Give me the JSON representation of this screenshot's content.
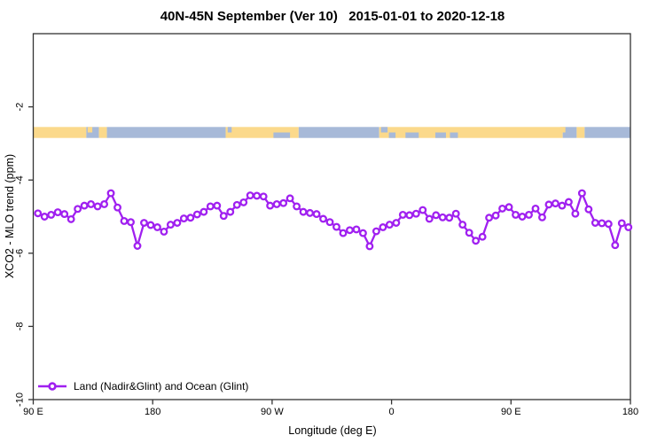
{
  "title": "40N-45N September (Ver 10)   2015-01-01 to 2020-12-18",
  "chart_data": {
    "type": "line",
    "title": "40N-45N September (Ver 10)   2015-01-01 to 2020-12-18",
    "xlabel": "Longitude (deg E)",
    "ylabel": "XCO2 - MLO trend (ppm)",
    "xlim": [
      90,
      540
    ],
    "ylim": [
      0,
      -10
    ],
    "x_tick_positions": [
      90,
      180,
      270,
      360,
      450,
      540
    ],
    "x_tick_labels": [
      "90 E",
      "180",
      "90 W",
      "0",
      "90 E",
      "180"
    ],
    "y_ticks": [
      -2,
      -4,
      -6,
      -8,
      -10
    ],
    "grid": "off",
    "legend_position": "bottom-left",
    "series": [
      {
        "name": "Land (Nadir&Glint) and Ocean (Glint)",
        "color": "#A020F0",
        "marker": "open-circle",
        "x_start": 93.5,
        "x_step": 5,
        "values": [
          -4.91,
          -5.0,
          -4.95,
          -4.88,
          -4.93,
          -5.07,
          -4.79,
          -4.7,
          -4.66,
          -4.72,
          -4.66,
          -4.36,
          -4.75,
          -5.12,
          -5.15,
          -5.8,
          -5.17,
          -5.23,
          -5.29,
          -5.41,
          -5.22,
          -5.17,
          -5.05,
          -5.03,
          -4.94,
          -4.87,
          -4.72,
          -4.7,
          -4.98,
          -4.87,
          -4.68,
          -4.61,
          -4.42,
          -4.43,
          -4.45,
          -4.7,
          -4.66,
          -4.63,
          -4.5,
          -4.72,
          -4.87,
          -4.9,
          -4.93,
          -5.06,
          -5.15,
          -5.28,
          -5.45,
          -5.37,
          -5.35,
          -5.45,
          -5.81,
          -5.4,
          -5.29,
          -5.22,
          -5.17,
          -4.95,
          -4.96,
          -4.92,
          -4.82,
          -5.06,
          -4.96,
          -5.02,
          -5.03,
          -4.92,
          -5.22,
          -5.44,
          -5.66,
          -5.55,
          -5.03,
          -4.97,
          -4.78,
          -4.74,
          -4.95,
          -5.0,
          -4.95,
          -4.78,
          -5.02,
          -4.67,
          -4.64,
          -4.7,
          -4.6,
          -4.92,
          -4.36,
          -4.8,
          -5.17,
          -5.18,
          -5.2,
          -5.78,
          -5.18,
          -5.29
        ]
      }
    ],
    "map_band": {
      "description": "land/ocean strip along 40N-45N",
      "y_top": -2.55,
      "y_bottom": -2.85,
      "land_color": "#FBD98B",
      "ocean_color": "#A7B9D8",
      "segments": [
        [
          90,
          130,
          "land"
        ],
        [
          130,
          139.5,
          "ocean"
        ],
        [
          139.5,
          145.5,
          "land"
        ],
        [
          145.5,
          235,
          "ocean"
        ],
        [
          235,
          290,
          "land"
        ],
        [
          290,
          350.7,
          "ocean"
        ],
        [
          350.7,
          489,
          "land"
        ],
        [
          489,
          499.5,
          "ocean"
        ],
        [
          499.5,
          505.5,
          "land"
        ],
        [
          505.5,
          540,
          "ocean"
        ]
      ],
      "specks": [
        [
          271,
          283.5,
          "bottom",
          "ocean"
        ],
        [
          352,
          357,
          "top",
          "ocean"
        ],
        [
          370.5,
          380.5,
          "bottom",
          "ocean"
        ],
        [
          393,
          401,
          "bottom",
          "ocean"
        ],
        [
          404,
          410,
          "bottom",
          "ocean"
        ],
        [
          236.5,
          239.5,
          "top",
          "ocean"
        ],
        [
          358,
          363,
          "bottom",
          "ocean"
        ],
        [
          131,
          134.5,
          "top",
          "land"
        ],
        [
          487,
          491,
          "top",
          "land"
        ]
      ]
    },
    "legend": {
      "label": "Land (Nadir&Glint) and Ocean (Glint)"
    }
  }
}
